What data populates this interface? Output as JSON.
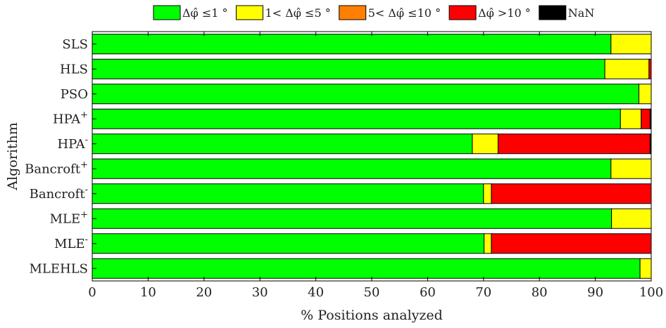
{
  "chart_data": {
    "type": "bar",
    "orientation": "horizontal",
    "stacked": true,
    "categories": [
      {
        "base": "SLS",
        "sup": ""
      },
      {
        "base": "HLS",
        "sup": ""
      },
      {
        "base": "PSO",
        "sup": ""
      },
      {
        "base": "HPA",
        "sup": "+"
      },
      {
        "base": "HPA",
        "sup": "-"
      },
      {
        "base": "Bancroft",
        "sup": "+"
      },
      {
        "base": "Bancroft",
        "sup": "-"
      },
      {
        "base": "MLE",
        "sup": "+"
      },
      {
        "base": "MLE",
        "sup": "-"
      },
      {
        "base": "MLEHLS",
        "sup": ""
      }
    ],
    "series": [
      {
        "name": "Δφ̂ ≤1 °",
        "color": "#00ff00",
        "values": [
          92.8,
          91.7,
          97.8,
          94.5,
          68.0,
          92.8,
          70.0,
          92.9,
          70.1,
          98.0
        ]
      },
      {
        "name": "1< Δφ̂ ≤5 °",
        "color": "#ffff00",
        "values": [
          7.2,
          7.9,
          2.2,
          3.7,
          4.6,
          7.2,
          1.4,
          7.1,
          1.3,
          2.0
        ]
      },
      {
        "name": "5< Δφ̂ ≤10 °",
        "color": "#ff8000",
        "values": [
          0,
          0,
          0,
          0,
          0,
          0,
          0,
          0,
          0,
          0
        ]
      },
      {
        "name": "Δφ̂ >10 °",
        "color": "#ff0000",
        "values": [
          0,
          0.4,
          0,
          1.6,
          27.2,
          0,
          28.6,
          0,
          28.6,
          0
        ]
      },
      {
        "name": "NaN",
        "color": "#000000",
        "values": [
          0,
          0,
          0,
          0.2,
          0.2,
          0,
          0,
          0,
          0,
          0
        ]
      }
    ],
    "xlabel": "% Positions analyzed",
    "ylabel": "Algorithm",
    "xlim": [
      0,
      100
    ],
    "xticks": [
      0,
      10,
      20,
      30,
      40,
      50,
      60,
      70,
      80,
      90,
      100
    ],
    "grid": false,
    "legend_placement": "top"
  }
}
